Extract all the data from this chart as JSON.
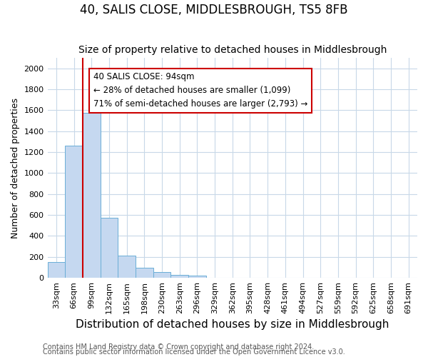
{
  "title": "40, SALIS CLOSE, MIDDLESBROUGH, TS5 8FB",
  "subtitle": "Size of property relative to detached houses in Middlesbrough",
  "xlabel": "Distribution of detached houses by size in Middlesbrough",
  "ylabel": "Number of detached properties",
  "footnote1": "Contains HM Land Registry data © Crown copyright and database right 2024.",
  "footnote2": "Contains public sector information licensed under the Open Government Licence v3.0.",
  "bins": [
    "33sqm",
    "66sqm",
    "99sqm",
    "132sqm",
    "165sqm",
    "198sqm",
    "230sqm",
    "263sqm",
    "296sqm",
    "329sqm",
    "362sqm",
    "395sqm",
    "428sqm",
    "461sqm",
    "494sqm",
    "527sqm",
    "559sqm",
    "592sqm",
    "625sqm",
    "658sqm",
    "691sqm"
  ],
  "values": [
    150,
    1265,
    1575,
    575,
    215,
    95,
    55,
    30,
    25,
    0,
    0,
    0,
    0,
    0,
    0,
    0,
    0,
    0,
    0,
    0,
    0
  ],
  "bar_color": "#c5d8f0",
  "bar_edge_color": "#6aaed6",
  "red_line_bin_index": 2.0,
  "annotation_text1": "40 SALIS CLOSE: 94sqm",
  "annotation_text2": "← 28% of detached houses are smaller (1,099)",
  "annotation_text3": "71% of semi-detached houses are larger (2,793) →",
  "annotation_box_color": "#ffffff",
  "annotation_box_edge": "#cc0000",
  "red_line_color": "#cc0000",
  "ylim": [
    0,
    2100
  ],
  "yticks": [
    0,
    200,
    400,
    600,
    800,
    1000,
    1200,
    1400,
    1600,
    1800,
    2000
  ],
  "grid_color": "#c8d8e8",
  "bg_color": "#ffffff",
  "fig_bg_color": "#ffffff",
  "title_fontsize": 12,
  "subtitle_fontsize": 10,
  "xlabel_fontsize": 11,
  "ylabel_fontsize": 9,
  "tick_fontsize": 8,
  "footnote_fontsize": 7
}
